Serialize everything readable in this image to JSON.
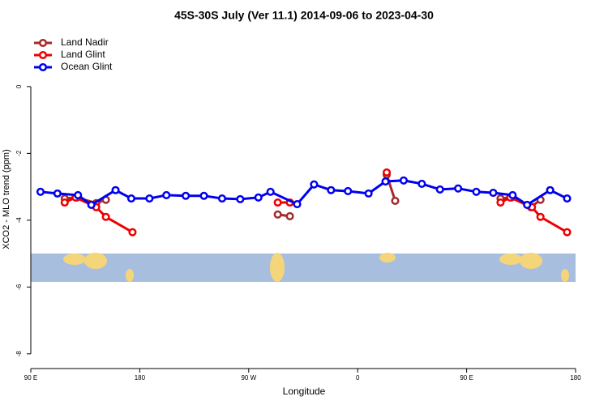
{
  "chart_data": {
    "type": "line",
    "title": "45S-30S July (Ver 11.1)   2014-09-06 to 2023-04-30",
    "xlabel": "Longitude",
    "ylabel": "XCO2 - MLO trend (ppm)",
    "xlim": [
      90,
      540
    ],
    "ylim": [
      -8.44,
      1.67
    ],
    "xticks": [
      {
        "value": 90,
        "label": "90 E"
      },
      180,
      {
        "value": 270,
        "label": "90 W"
      },
      {
        "value": 360,
        "label": "0"
      },
      {
        "value": 450,
        "label": "90 E"
      },
      {
        "value": 540,
        "label": "180"
      }
    ],
    "yticks": [
      0,
      -2,
      -4,
      -6,
      -8
    ],
    "legend": "upper left",
    "series": [
      {
        "name": "Land Nadir",
        "color": "#a52a2a",
        "x": [
          118,
          128,
          144,
          152,
          null,
          294,
          304,
          null,
          384,
          391,
          null,
          478,
          487,
          503,
          511
        ],
        "values": [
          -3.35,
          -3.32,
          -3.49,
          -3.39,
          null,
          -3.83,
          -3.88,
          null,
          -2.64,
          -3.42,
          null,
          -3.35,
          -3.32,
          -3.61,
          -3.39
        ]
      },
      {
        "name": "Land Glint",
        "color": "#ee0000",
        "x": [
          118,
          127,
          144,
          152,
          174,
          null,
          294,
          304,
          null,
          384,
          null,
          478,
          486,
          504,
          511,
          533
        ],
        "values": [
          -3.47,
          -3.32,
          -3.61,
          -3.9,
          -4.36,
          null,
          -3.47,
          -3.47,
          null,
          -2.57,
          null,
          -3.47,
          -3.32,
          -3.61,
          -3.9,
          -4.36
        ]
      },
      {
        "name": "Ocean Glint",
        "color": "#0000ee",
        "x": [
          98,
          112,
          129,
          140,
          160,
          173,
          188,
          202,
          218,
          233,
          248,
          263,
          278,
          288,
          310,
          324,
          338,
          352,
          369,
          383,
          398,
          413,
          428,
          443,
          458,
          472,
          488,
          500,
          519,
          533
        ],
        "values": [
          -3.15,
          -3.2,
          -3.25,
          -3.54,
          -3.1,
          -3.35,
          -3.35,
          -3.25,
          -3.27,
          -3.27,
          -3.35,
          -3.37,
          -3.32,
          -3.15,
          -3.52,
          -2.93,
          -3.1,
          -3.13,
          -3.2,
          -2.84,
          -2.81,
          -2.91,
          -3.08,
          -3.05,
          -3.15,
          -3.18,
          -3.25,
          -3.54,
          -3.1,
          -3.35
        ]
      }
    ]
  }
}
